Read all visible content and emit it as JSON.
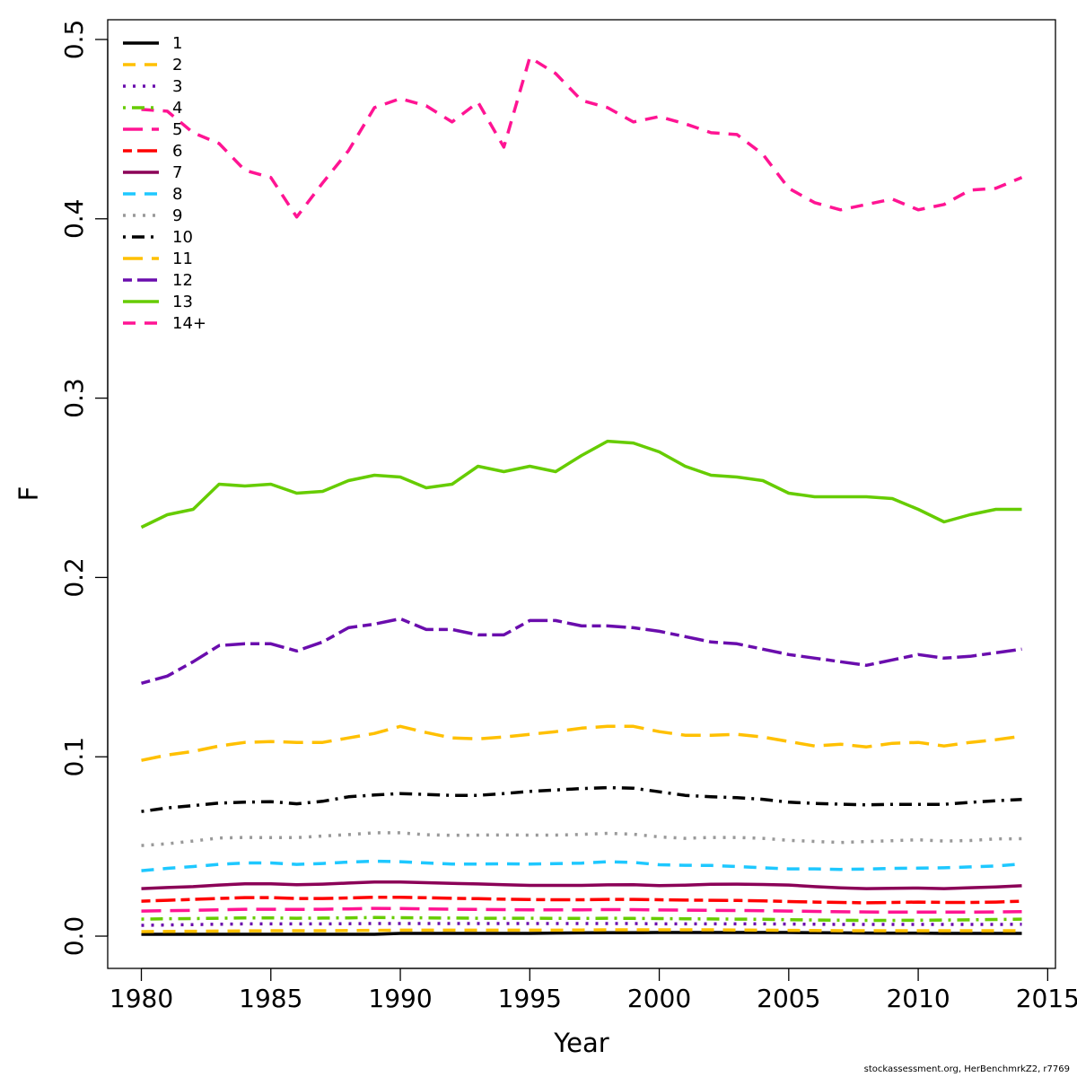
{
  "chart_data": {
    "type": "line",
    "xlabel": "Year",
    "ylabel": "F",
    "xlim": [
      1978.7,
      2015.3
    ],
    "ylim": [
      -0.018,
      0.511
    ],
    "x_ticks": [
      1980,
      1985,
      1990,
      1995,
      2000,
      2005,
      2010,
      2015
    ],
    "y_ticks": [
      0.0,
      0.1,
      0.2,
      0.3,
      0.4,
      0.5
    ],
    "y_tick_labels": [
      "0.0",
      "0.1",
      "0.2",
      "0.3",
      "0.4",
      "0.5"
    ],
    "grid": false,
    "legend_placement": "top-left",
    "x": [
      1980,
      1981,
      1982,
      1983,
      1984,
      1985,
      1986,
      1987,
      1988,
      1989,
      1990,
      1991,
      1992,
      1993,
      1994,
      1995,
      1996,
      1997,
      1998,
      1999,
      2000,
      2001,
      2002,
      2003,
      2004,
      2005,
      2006,
      2007,
      2008,
      2009,
      2010,
      2011,
      2012,
      2013,
      2014
    ],
    "series": [
      {
        "name": "1",
        "color": "#000000",
        "dash": "solid",
        "values": [
          0.001,
          0.001,
          0.001,
          0.001,
          0.001,
          0.001,
          0.001,
          0.001,
          0.001,
          0.001,
          0.0015,
          0.0015,
          0.0015,
          0.0015,
          0.0015,
          0.0015,
          0.0017,
          0.0018,
          0.0019,
          0.0019,
          0.002,
          0.002,
          0.002,
          0.002,
          0.002,
          0.002,
          0.0019,
          0.0018,
          0.0017,
          0.0016,
          0.0016,
          0.0015,
          0.0015,
          0.0015,
          0.0015
        ]
      },
      {
        "name": "2",
        "color": "#ffc000",
        "dash": "dashed",
        "values": [
          0.0025,
          0.0026,
          0.0027,
          0.0028,
          0.0029,
          0.003,
          0.003,
          0.003,
          0.0031,
          0.0032,
          0.0033,
          0.0033,
          0.0033,
          0.0033,
          0.0033,
          0.0033,
          0.0033,
          0.0034,
          0.0035,
          0.0035,
          0.0035,
          0.0035,
          0.0035,
          0.0034,
          0.0033,
          0.0032,
          0.0031,
          0.003,
          0.003,
          0.003,
          0.003,
          0.003,
          0.003,
          0.003,
          0.003
        ]
      },
      {
        "name": "3",
        "color": "#6a0dad",
        "dash": "dotted",
        "values": [
          0.006,
          0.0062,
          0.0064,
          0.0066,
          0.0068,
          0.0068,
          0.0068,
          0.0068,
          0.0069,
          0.007,
          0.007,
          0.007,
          0.007,
          0.007,
          0.007,
          0.007,
          0.007,
          0.007,
          0.007,
          0.007,
          0.0068,
          0.0068,
          0.0068,
          0.0068,
          0.0068,
          0.0067,
          0.0066,
          0.0065,
          0.0065,
          0.0065,
          0.0065,
          0.0065,
          0.0065,
          0.0065,
          0.0066
        ]
      },
      {
        "name": "4",
        "color": "#66cc00",
        "dash": "dotdash",
        "values": [
          0.0095,
          0.0097,
          0.0098,
          0.01,
          0.0102,
          0.0102,
          0.01,
          0.0101,
          0.0102,
          0.0104,
          0.0103,
          0.0102,
          0.0101,
          0.01,
          0.01,
          0.01,
          0.0099,
          0.0099,
          0.01,
          0.0099,
          0.0098,
          0.0097,
          0.0096,
          0.0095,
          0.0094,
          0.0092,
          0.009,
          0.0089,
          0.0088,
          0.0088,
          0.0089,
          0.009,
          0.0091,
          0.0093,
          0.0095
        ]
      },
      {
        "name": "5",
        "color": "#ff1493",
        "dash": "longdash",
        "values": [
          0.014,
          0.0142,
          0.0144,
          0.0147,
          0.015,
          0.015,
          0.0149,
          0.015,
          0.0152,
          0.0155,
          0.0154,
          0.0152,
          0.015,
          0.0149,
          0.0148,
          0.0147,
          0.0147,
          0.0147,
          0.0148,
          0.0148,
          0.0146,
          0.0145,
          0.0144,
          0.0143,
          0.0142,
          0.014,
          0.0138,
          0.0136,
          0.0135,
          0.0134,
          0.0134,
          0.0134,
          0.0134,
          0.0135,
          0.0137
        ]
      },
      {
        "name": "6",
        "color": "#ff0000",
        "dash": "twodash",
        "values": [
          0.0195,
          0.02,
          0.0205,
          0.021,
          0.0215,
          0.0215,
          0.021,
          0.021,
          0.0213,
          0.0217,
          0.0217,
          0.0214,
          0.0211,
          0.0209,
          0.0206,
          0.0204,
          0.0203,
          0.0203,
          0.0205,
          0.0205,
          0.0203,
          0.0201,
          0.02,
          0.0199,
          0.0197,
          0.0193,
          0.019,
          0.0188,
          0.0186,
          0.0188,
          0.019,
          0.0188,
          0.0188,
          0.019,
          0.0195
        ]
      },
      {
        "name": "7",
        "color": "#8b0057",
        "dash": "solid",
        "values": [
          0.0265,
          0.0271,
          0.0276,
          0.0285,
          0.0292,
          0.0292,
          0.0287,
          0.029,
          0.0296,
          0.0302,
          0.0302,
          0.0298,
          0.0294,
          0.0291,
          0.0287,
          0.0283,
          0.0283,
          0.0283,
          0.0286,
          0.0287,
          0.0282,
          0.0284,
          0.0289,
          0.029,
          0.0288,
          0.0285,
          0.0276,
          0.0269,
          0.0265,
          0.0267,
          0.0268,
          0.0265,
          0.027,
          0.0274,
          0.0281
        ]
      },
      {
        "name": "8",
        "color": "#1ec8ff",
        "dash": "dashed",
        "values": [
          0.0365,
          0.0378,
          0.0388,
          0.04,
          0.0408,
          0.0408,
          0.04,
          0.0405,
          0.0413,
          0.0418,
          0.0415,
          0.0408,
          0.0402,
          0.0402,
          0.0403,
          0.0402,
          0.0404,
          0.0407,
          0.0415,
          0.0411,
          0.0398,
          0.0395,
          0.0394,
          0.0388,
          0.0381,
          0.0375,
          0.0375,
          0.0372,
          0.0374,
          0.0378,
          0.0379,
          0.0381,
          0.0386,
          0.0391,
          0.0402
        ]
      },
      {
        "name": "9",
        "color": "#999999",
        "dash": "dotted",
        "values": [
          0.0505,
          0.0515,
          0.053,
          0.0547,
          0.055,
          0.0549,
          0.0549,
          0.0558,
          0.0566,
          0.0576,
          0.0576,
          0.0565,
          0.0562,
          0.0563,
          0.0564,
          0.0563,
          0.0563,
          0.0567,
          0.0573,
          0.0568,
          0.0553,
          0.0545,
          0.055,
          0.055,
          0.0545,
          0.0534,
          0.0528,
          0.0522,
          0.0527,
          0.0532,
          0.0537,
          0.053,
          0.0533,
          0.0542,
          0.0543
        ]
      },
      {
        "name": "10",
        "color": "#000000",
        "dash": "dotdash",
        "values": [
          0.0695,
          0.0715,
          0.0728,
          0.0742,
          0.0747,
          0.075,
          0.0738,
          0.0752,
          0.0777,
          0.0787,
          0.0795,
          0.079,
          0.0785,
          0.0785,
          0.0795,
          0.0807,
          0.0815,
          0.0823,
          0.0828,
          0.0825,
          0.0805,
          0.0785,
          0.0777,
          0.0772,
          0.0763,
          0.0747,
          0.074,
          0.0736,
          0.0732,
          0.0735,
          0.0735,
          0.0735,
          0.0746,
          0.0755,
          0.0762
        ]
      },
      {
        "name": "11",
        "color": "#ffc000",
        "dash": "longdash",
        "values": [
          0.098,
          0.101,
          0.103,
          0.106,
          0.108,
          0.1085,
          0.108,
          0.108,
          0.1105,
          0.113,
          0.117,
          0.1135,
          0.1105,
          0.11,
          0.111,
          0.1125,
          0.114,
          0.116,
          0.117,
          0.117,
          0.114,
          0.112,
          0.112,
          0.1125,
          0.111,
          0.1085,
          0.106,
          0.107,
          0.1055,
          0.1075,
          0.108,
          0.106,
          0.108,
          0.1095,
          0.1115
        ]
      },
      {
        "name": "12",
        "color": "#6a0dad",
        "dash": "twodash",
        "values": [
          0.141,
          0.145,
          0.153,
          0.162,
          0.163,
          0.163,
          0.159,
          0.164,
          0.172,
          0.174,
          0.177,
          0.171,
          0.171,
          0.168,
          0.168,
          0.176,
          0.176,
          0.173,
          0.173,
          0.172,
          0.17,
          0.167,
          0.164,
          0.163,
          0.16,
          0.157,
          0.155,
          0.153,
          0.151,
          0.154,
          0.157,
          0.155,
          0.156,
          0.158,
          0.16
        ]
      },
      {
        "name": "13",
        "color": "#66cc00",
        "dash": "solid",
        "values": [
          0.228,
          0.235,
          0.238,
          0.252,
          0.251,
          0.252,
          0.247,
          0.248,
          0.254,
          0.257,
          0.256,
          0.25,
          0.252,
          0.262,
          0.259,
          0.262,
          0.259,
          0.268,
          0.276,
          0.275,
          0.27,
          0.262,
          0.257,
          0.256,
          0.254,
          0.247,
          0.245,
          0.245,
          0.245,
          0.244,
          0.238,
          0.231,
          0.235,
          0.238,
          0.238
        ]
      },
      {
        "name": "14+",
        "color": "#ff1493",
        "dash": "dashed",
        "values": [
          0.461,
          0.46,
          0.448,
          0.442,
          0.427,
          0.423,
          0.401,
          0.42,
          0.438,
          0.462,
          0.467,
          0.463,
          0.454,
          0.465,
          0.44,
          0.49,
          0.481,
          0.466,
          0.462,
          0.454,
          0.457,
          0.453,
          0.448,
          0.447,
          0.436,
          0.417,
          0.409,
          0.405,
          0.408,
          0.411,
          0.405,
          0.408,
          0.416,
          0.417,
          0.423
        ]
      }
    ]
  },
  "footer_text": "stockassessment.org, HerBenchmrkZ2, r7769"
}
